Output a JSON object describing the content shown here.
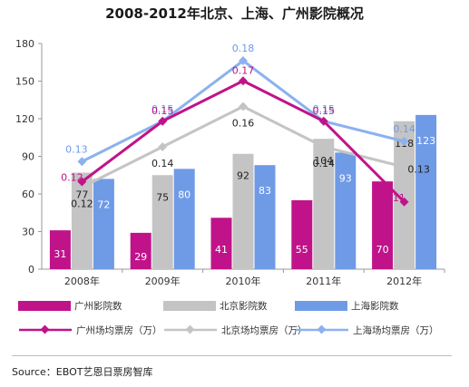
{
  "chart_data": {
    "type": "bar",
    "title": "2008-2012年北京、上海、广州影院概况",
    "categories": [
      "2008年",
      "2009年",
      "2010年",
      "2011年",
      "2012年"
    ],
    "ylim": [
      0,
      180
    ],
    "yticks": [
      "0",
      "30",
      "60",
      "90",
      "120",
      "150",
      "180"
    ],
    "bar_series": [
      {
        "name": "广州影院数",
        "color": "#c0138a",
        "values": [
          31,
          29,
          41,
          55,
          70
        ]
      },
      {
        "name": "北京影院数",
        "color": "#c4c4c4",
        "values": [
          77,
          75,
          92,
          104,
          118
        ]
      },
      {
        "name": "上海影院数",
        "color": "#6f9ae6",
        "values": [
          72,
          80,
          83,
          93,
          123
        ]
      }
    ],
    "line_series": [
      {
        "name": "广州场均票房（万）",
        "color": "#c0138a",
        "values": [
          0.12,
          0.15,
          0.17,
          0.15,
          0.11
        ]
      },
      {
        "name": "北京场均票房（万）",
        "color": "#c4c4c4",
        "values": [
          0.12,
          0.14,
          0.16,
          0.14,
          0.13
        ]
      },
      {
        "name": "上海场均票房（万）",
        "color": "#8cb1ee",
        "values": [
          0.13,
          0.15,
          0.18,
          0.15,
          0.14
        ]
      }
    ],
    "line_labels": {
      "guangzhou": [
        "0.12",
        "0.15",
        "0.17",
        "0.15",
        "0.11"
      ],
      "beijing": [
        "0.12",
        "0.14",
        "0.16",
        "0.14",
        "0.13"
      ],
      "shanghai": [
        "0.13",
        "0.15",
        "0.18",
        "0.15",
        "0.14"
      ]
    },
    "grid": false,
    "legend_position": "bottom"
  },
  "source": "Source：EBOT艺恩日票房智库"
}
